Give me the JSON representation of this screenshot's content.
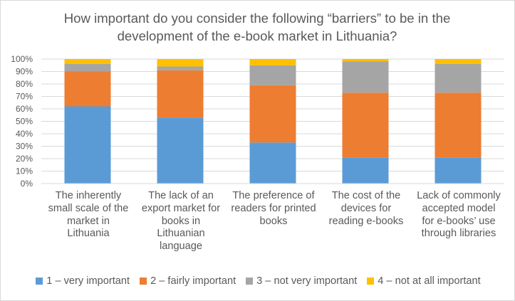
{
  "chart_data": {
    "type": "bar",
    "stacked": true,
    "title_lines": [
      "How important do you consider the following “barriers” to be in the",
      "development of the e-book market in Lithuania?"
    ],
    "categories": [
      [
        "The inherently",
        "small scale of the",
        "market in",
        "Lithuania"
      ],
      [
        "The lack of an",
        "export market for",
        "books in",
        "Lithuanian",
        "language"
      ],
      [
        "The preference of",
        "readers for printed",
        "books"
      ],
      [
        "The cost of the",
        "devices for",
        "reading e-books"
      ],
      [
        "Lack of commonly",
        "accepted model",
        "for e-books’ use",
        "through libraries"
      ]
    ],
    "y_ticks": [
      "0%",
      "10%",
      "20%",
      "30%",
      "40%",
      "50%",
      "60%",
      "70%",
      "80%",
      "90%",
      "100%"
    ],
    "ylim": [
      0,
      100
    ],
    "grid": true,
    "legend_position": "bottom",
    "series": [
      {
        "name": "1 – very important",
        "color": "#5b9bd5",
        "values": [
          62,
          53,
          33,
          21,
          21
        ]
      },
      {
        "name": "2 – fairly important",
        "color": "#ed7d31",
        "values": [
          28,
          38,
          46,
          52,
          52
        ]
      },
      {
        "name": "3 – not very important",
        "color": "#a5a5a5",
        "values": [
          6,
          3,
          16,
          25,
          23
        ]
      },
      {
        "name": "4 – not at all important",
        "color": "#ffc000",
        "values": [
          4,
          6,
          5,
          2,
          4
        ]
      }
    ]
  }
}
